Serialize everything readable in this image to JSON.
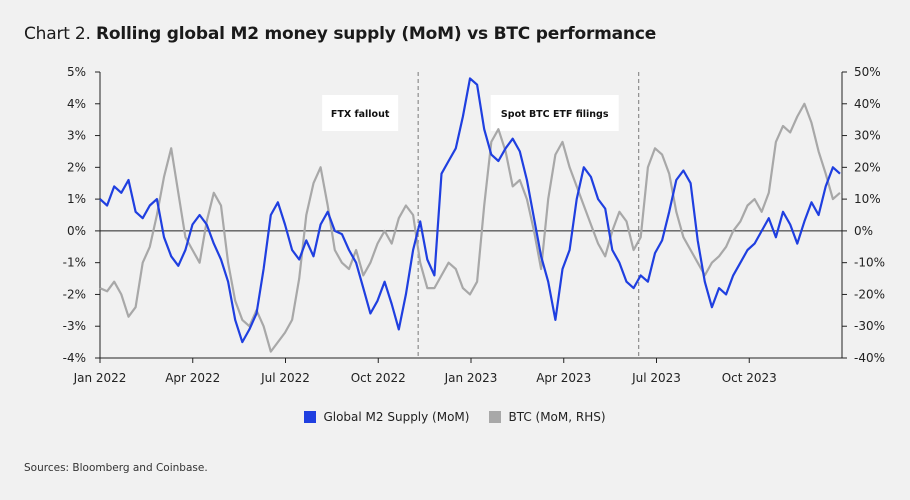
{
  "header": {
    "prefix": "Chart 2.",
    "title": "Rolling global M2 money supply (MoM) vs BTC performance"
  },
  "footer": {
    "source": "Sources: Bloomberg and Coinbase."
  },
  "colors": {
    "m2": "#1f3fe0",
    "btc": "#a8a8a8",
    "axis": "#222222",
    "annotation_line": "#7a7a7a"
  },
  "chart_data": {
    "type": "line",
    "x_ticks": [
      "Jan 2022",
      "Apr 2022",
      "Jul 2022",
      "Oct 2022",
      "Jan 2023",
      "Apr 2023",
      "Jul 2023",
      "Oct 2023"
    ],
    "y_left": {
      "ticks": [
        "5%",
        "4%",
        "3%",
        "2%",
        "1%",
        "0%",
        "-1%",
        "-2%",
        "-3%",
        "-4%"
      ],
      "range": [
        -4,
        5
      ]
    },
    "y_right": {
      "ticks": [
        "50%",
        "40%",
        "30%",
        "20%",
        "10%",
        "0%",
        "-10%",
        "-20%",
        "-30%",
        "-40%"
      ],
      "range": [
        -40,
        50
      ]
    },
    "annotations": [
      {
        "label": "FTX fallout",
        "date": "2022-11-10"
      },
      {
        "label": "Spot BTC ETF filings",
        "date": "2023-06-15"
      }
    ],
    "series": [
      {
        "name": "Global M2 Supply (MoM)",
        "axis": "left",
        "points": [
          [
            "2022-01-01",
            1.0
          ],
          [
            "2022-01-08",
            0.8
          ],
          [
            "2022-01-15",
            1.4
          ],
          [
            "2022-01-22",
            1.2
          ],
          [
            "2022-01-29",
            1.6
          ],
          [
            "2022-02-05",
            0.6
          ],
          [
            "2022-02-12",
            0.4
          ],
          [
            "2022-02-19",
            0.8
          ],
          [
            "2022-02-26",
            1.0
          ],
          [
            "2022-03-05",
            -0.2
          ],
          [
            "2022-03-12",
            -0.8
          ],
          [
            "2022-03-19",
            -1.1
          ],
          [
            "2022-03-26",
            -0.6
          ],
          [
            "2022-04-02",
            0.2
          ],
          [
            "2022-04-09",
            0.5
          ],
          [
            "2022-04-16",
            0.2
          ],
          [
            "2022-04-23",
            -0.4
          ],
          [
            "2022-04-30",
            -0.9
          ],
          [
            "2022-05-07",
            -1.6
          ],
          [
            "2022-05-14",
            -2.8
          ],
          [
            "2022-05-21",
            -3.5
          ],
          [
            "2022-05-28",
            -3.1
          ],
          [
            "2022-06-04",
            -2.6
          ],
          [
            "2022-06-11",
            -1.2
          ],
          [
            "2022-06-18",
            0.5
          ],
          [
            "2022-06-25",
            0.9
          ],
          [
            "2022-07-02",
            0.2
          ],
          [
            "2022-07-09",
            -0.6
          ],
          [
            "2022-07-16",
            -0.9
          ],
          [
            "2022-07-23",
            -0.3
          ],
          [
            "2022-07-30",
            -0.8
          ],
          [
            "2022-08-06",
            0.2
          ],
          [
            "2022-08-13",
            0.6
          ],
          [
            "2022-08-20",
            0.0
          ],
          [
            "2022-08-27",
            -0.1
          ],
          [
            "2022-09-03",
            -0.6
          ],
          [
            "2022-09-10",
            -1.0
          ],
          [
            "2022-09-17",
            -1.8
          ],
          [
            "2022-09-24",
            -2.6
          ],
          [
            "2022-10-01",
            -2.2
          ],
          [
            "2022-10-08",
            -1.6
          ],
          [
            "2022-10-15",
            -2.3
          ],
          [
            "2022-10-22",
            -3.1
          ],
          [
            "2022-10-29",
            -2.0
          ],
          [
            "2022-11-05",
            -0.6
          ],
          [
            "2022-11-12",
            0.3
          ],
          [
            "2022-11-19",
            -0.9
          ],
          [
            "2022-11-26",
            -1.4
          ],
          [
            "2022-12-03",
            1.8
          ],
          [
            "2022-12-10",
            2.2
          ],
          [
            "2022-12-17",
            2.6
          ],
          [
            "2022-12-24",
            3.6
          ],
          [
            "2022-12-31",
            4.8
          ],
          [
            "2023-01-07",
            4.6
          ],
          [
            "2023-01-14",
            3.2
          ],
          [
            "2023-01-21",
            2.4
          ],
          [
            "2023-01-28",
            2.2
          ],
          [
            "2023-02-04",
            2.6
          ],
          [
            "2023-02-11",
            2.9
          ],
          [
            "2023-02-18",
            2.5
          ],
          [
            "2023-02-25",
            1.6
          ],
          [
            "2023-03-04",
            0.4
          ],
          [
            "2023-03-11",
            -0.8
          ],
          [
            "2023-03-18",
            -1.6
          ],
          [
            "2023-03-25",
            -2.8
          ],
          [
            "2023-04-01",
            -1.2
          ],
          [
            "2023-04-08",
            -0.6
          ],
          [
            "2023-04-15",
            1.0
          ],
          [
            "2023-04-22",
            2.0
          ],
          [
            "2023-04-29",
            1.7
          ],
          [
            "2023-05-06",
            1.0
          ],
          [
            "2023-05-13",
            0.7
          ],
          [
            "2023-05-20",
            -0.6
          ],
          [
            "2023-05-27",
            -1.0
          ],
          [
            "2023-06-03",
            -1.6
          ],
          [
            "2023-06-10",
            -1.8
          ],
          [
            "2023-06-17",
            -1.4
          ],
          [
            "2023-06-24",
            -1.6
          ],
          [
            "2023-07-01",
            -0.7
          ],
          [
            "2023-07-08",
            -0.3
          ],
          [
            "2023-07-15",
            0.6
          ],
          [
            "2023-07-22",
            1.6
          ],
          [
            "2023-07-29",
            1.9
          ],
          [
            "2023-08-05",
            1.5
          ],
          [
            "2023-08-12",
            -0.3
          ],
          [
            "2023-08-19",
            -1.6
          ],
          [
            "2023-08-26",
            -2.4
          ],
          [
            "2023-09-02",
            -1.8
          ],
          [
            "2023-09-09",
            -2.0
          ],
          [
            "2023-09-16",
            -1.4
          ],
          [
            "2023-09-23",
            -1.0
          ],
          [
            "2023-09-30",
            -0.6
          ],
          [
            "2023-10-07",
            -0.4
          ],
          [
            "2023-10-14",
            0.0
          ],
          [
            "2023-10-21",
            0.4
          ],
          [
            "2023-10-28",
            -0.2
          ],
          [
            "2023-11-04",
            0.6
          ],
          [
            "2023-11-11",
            0.2
          ],
          [
            "2023-11-18",
            -0.4
          ],
          [
            "2023-11-25",
            0.3
          ],
          [
            "2023-12-02",
            0.9
          ],
          [
            "2023-12-09",
            0.5
          ],
          [
            "2023-12-16",
            1.4
          ],
          [
            "2023-12-23",
            2.0
          ],
          [
            "2023-12-30",
            1.8
          ]
        ]
      },
      {
        "name": "BTC (MoM, RHS)",
        "axis": "right",
        "points": [
          [
            "2022-01-01",
            -18
          ],
          [
            "2022-01-08",
            -19
          ],
          [
            "2022-01-15",
            -16
          ],
          [
            "2022-01-22",
            -20
          ],
          [
            "2022-01-29",
            -27
          ],
          [
            "2022-02-05",
            -24
          ],
          [
            "2022-02-12",
            -10
          ],
          [
            "2022-02-19",
            -5
          ],
          [
            "2022-02-26",
            5
          ],
          [
            "2022-03-05",
            17
          ],
          [
            "2022-03-12",
            26
          ],
          [
            "2022-03-19",
            12
          ],
          [
            "2022-03-26",
            -2
          ],
          [
            "2022-04-02",
            -6
          ],
          [
            "2022-04-09",
            -10
          ],
          [
            "2022-04-16",
            3
          ],
          [
            "2022-04-23",
            12
          ],
          [
            "2022-04-30",
            8
          ],
          [
            "2022-05-07",
            -10
          ],
          [
            "2022-05-14",
            -22
          ],
          [
            "2022-05-21",
            -28
          ],
          [
            "2022-05-28",
            -30
          ],
          [
            "2022-06-04",
            -25
          ],
          [
            "2022-06-11",
            -30
          ],
          [
            "2022-06-18",
            -38
          ],
          [
            "2022-06-25",
            -35
          ],
          [
            "2022-07-02",
            -32
          ],
          [
            "2022-07-09",
            -28
          ],
          [
            "2022-07-16",
            -15
          ],
          [
            "2022-07-23",
            5
          ],
          [
            "2022-07-30",
            15
          ],
          [
            "2022-08-06",
            20
          ],
          [
            "2022-08-13",
            8
          ],
          [
            "2022-08-20",
            -6
          ],
          [
            "2022-08-27",
            -10
          ],
          [
            "2022-09-03",
            -12
          ],
          [
            "2022-09-10",
            -6
          ],
          [
            "2022-09-17",
            -14
          ],
          [
            "2022-09-24",
            -10
          ],
          [
            "2022-10-01",
            -4
          ],
          [
            "2022-10-08",
            0
          ],
          [
            "2022-10-15",
            -4
          ],
          [
            "2022-10-22",
            4
          ],
          [
            "2022-10-29",
            8
          ],
          [
            "2022-11-05",
            5
          ],
          [
            "2022-11-12",
            -10
          ],
          [
            "2022-11-19",
            -18
          ],
          [
            "2022-11-26",
            -18
          ],
          [
            "2022-12-03",
            -14
          ],
          [
            "2022-12-10",
            -10
          ],
          [
            "2022-12-17",
            -12
          ],
          [
            "2022-12-24",
            -18
          ],
          [
            "2022-12-31",
            -20
          ],
          [
            "2023-01-07",
            -16
          ],
          [
            "2023-01-14",
            8
          ],
          [
            "2023-01-21",
            28
          ],
          [
            "2023-01-28",
            32
          ],
          [
            "2023-02-04",
            25
          ],
          [
            "2023-02-11",
            14
          ],
          [
            "2023-02-18",
            16
          ],
          [
            "2023-02-25",
            10
          ],
          [
            "2023-03-04",
            0
          ],
          [
            "2023-03-11",
            -12
          ],
          [
            "2023-03-18",
            10
          ],
          [
            "2023-03-25",
            24
          ],
          [
            "2023-04-01",
            28
          ],
          [
            "2023-04-08",
            20
          ],
          [
            "2023-04-15",
            14
          ],
          [
            "2023-04-22",
            8
          ],
          [
            "2023-04-29",
            2
          ],
          [
            "2023-05-06",
            -4
          ],
          [
            "2023-05-13",
            -8
          ],
          [
            "2023-05-20",
            0
          ],
          [
            "2023-05-27",
            6
          ],
          [
            "2023-06-03",
            3
          ],
          [
            "2023-06-10",
            -6
          ],
          [
            "2023-06-17",
            -2
          ],
          [
            "2023-06-24",
            20
          ],
          [
            "2023-07-01",
            26
          ],
          [
            "2023-07-08",
            24
          ],
          [
            "2023-07-15",
            18
          ],
          [
            "2023-07-22",
            6
          ],
          [
            "2023-07-29",
            -2
          ],
          [
            "2023-08-05",
            -6
          ],
          [
            "2023-08-12",
            -10
          ],
          [
            "2023-08-19",
            -14
          ],
          [
            "2023-08-26",
            -10
          ],
          [
            "2023-09-02",
            -8
          ],
          [
            "2023-09-09",
            -5
          ],
          [
            "2023-09-16",
            0
          ],
          [
            "2023-09-23",
            3
          ],
          [
            "2023-09-30",
            8
          ],
          [
            "2023-10-07",
            10
          ],
          [
            "2023-10-14",
            6
          ],
          [
            "2023-10-21",
            12
          ],
          [
            "2023-10-28",
            28
          ],
          [
            "2023-11-04",
            33
          ],
          [
            "2023-11-11",
            31
          ],
          [
            "2023-11-18",
            36
          ],
          [
            "2023-11-25",
            40
          ],
          [
            "2023-12-02",
            34
          ],
          [
            "2023-12-09",
            25
          ],
          [
            "2023-12-16",
            18
          ],
          [
            "2023-12-23",
            10
          ],
          [
            "2023-12-30",
            12
          ]
        ]
      }
    ]
  }
}
